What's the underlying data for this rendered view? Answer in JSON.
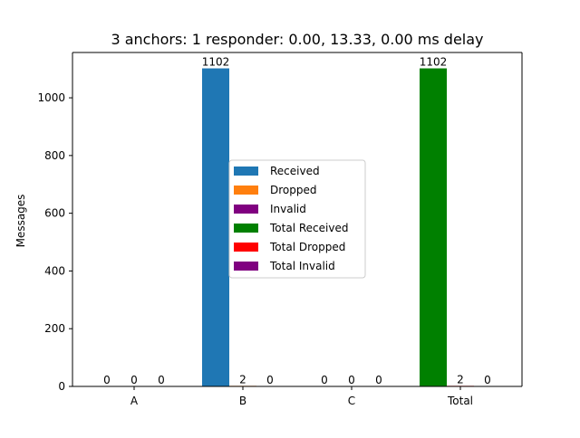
{
  "chart_data": {
    "type": "bar",
    "title": "3 anchors: 1 responder: 0.00, 13.33, 0.00 ms delay",
    "xlabel": "",
    "ylabel": "Messages",
    "categories": [
      "A",
      "B",
      "C",
      "Total"
    ],
    "ylim": [
      0,
      1157
    ],
    "yticks": [
      0,
      200,
      400,
      600,
      800,
      1000
    ],
    "grid": false,
    "legend_position": "center",
    "series": [
      {
        "name": "Received",
        "color": "#1f77b4",
        "values": [
          0,
          1102,
          0,
          null
        ]
      },
      {
        "name": "Dropped",
        "color": "#ff7f0e",
        "values": [
          0,
          2,
          0,
          null
        ]
      },
      {
        "name": "Invalid",
        "color": "#800080",
        "values": [
          0,
          0,
          0,
          null
        ]
      },
      {
        "name": "Total Received",
        "color": "#008000",
        "values": [
          null,
          null,
          null,
          1102
        ]
      },
      {
        "name": "Total Dropped",
        "color": "#ff0000",
        "values": [
          null,
          null,
          null,
          2
        ]
      },
      {
        "name": "Total Invalid",
        "color": "#800080",
        "values": [
          null,
          null,
          null,
          0
        ]
      }
    ],
    "data_labels": [
      [
        "0",
        "0",
        "0"
      ],
      [
        "1102",
        "2",
        "0"
      ],
      [
        "0",
        "0",
        "0"
      ],
      [
        "1102",
        "2",
        "0"
      ]
    ]
  }
}
